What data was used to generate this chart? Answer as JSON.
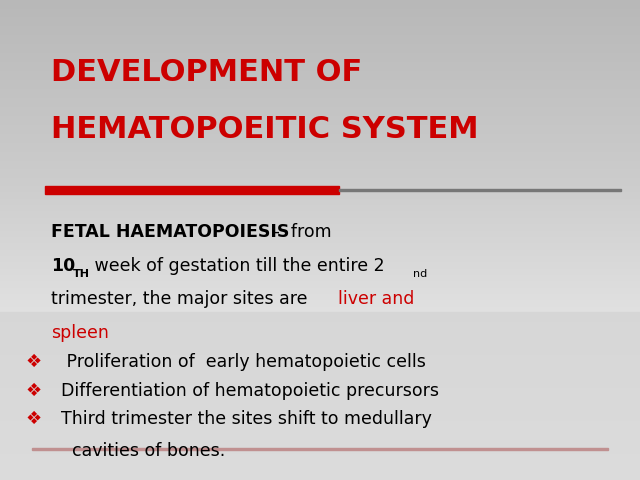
{
  "title_line1": "DEVELOPMENT OF",
  "title_line2": "HEMATOPOEITIC SYSTEM",
  "title_color": "#cc0000",
  "red_bar_color": "#cc0000",
  "body_font": "Comic Sans MS",
  "bullet_items": [
    " Proliferation of  early hematopoietic cells",
    "Differentiation of hematopoietic precursors",
    "Third trimester the sites shift to medullary\n  cavities of bones."
  ],
  "bullet_color": "#cc0000",
  "bullet_symbol": "❖",
  "bottom_line_color": "#c09090"
}
